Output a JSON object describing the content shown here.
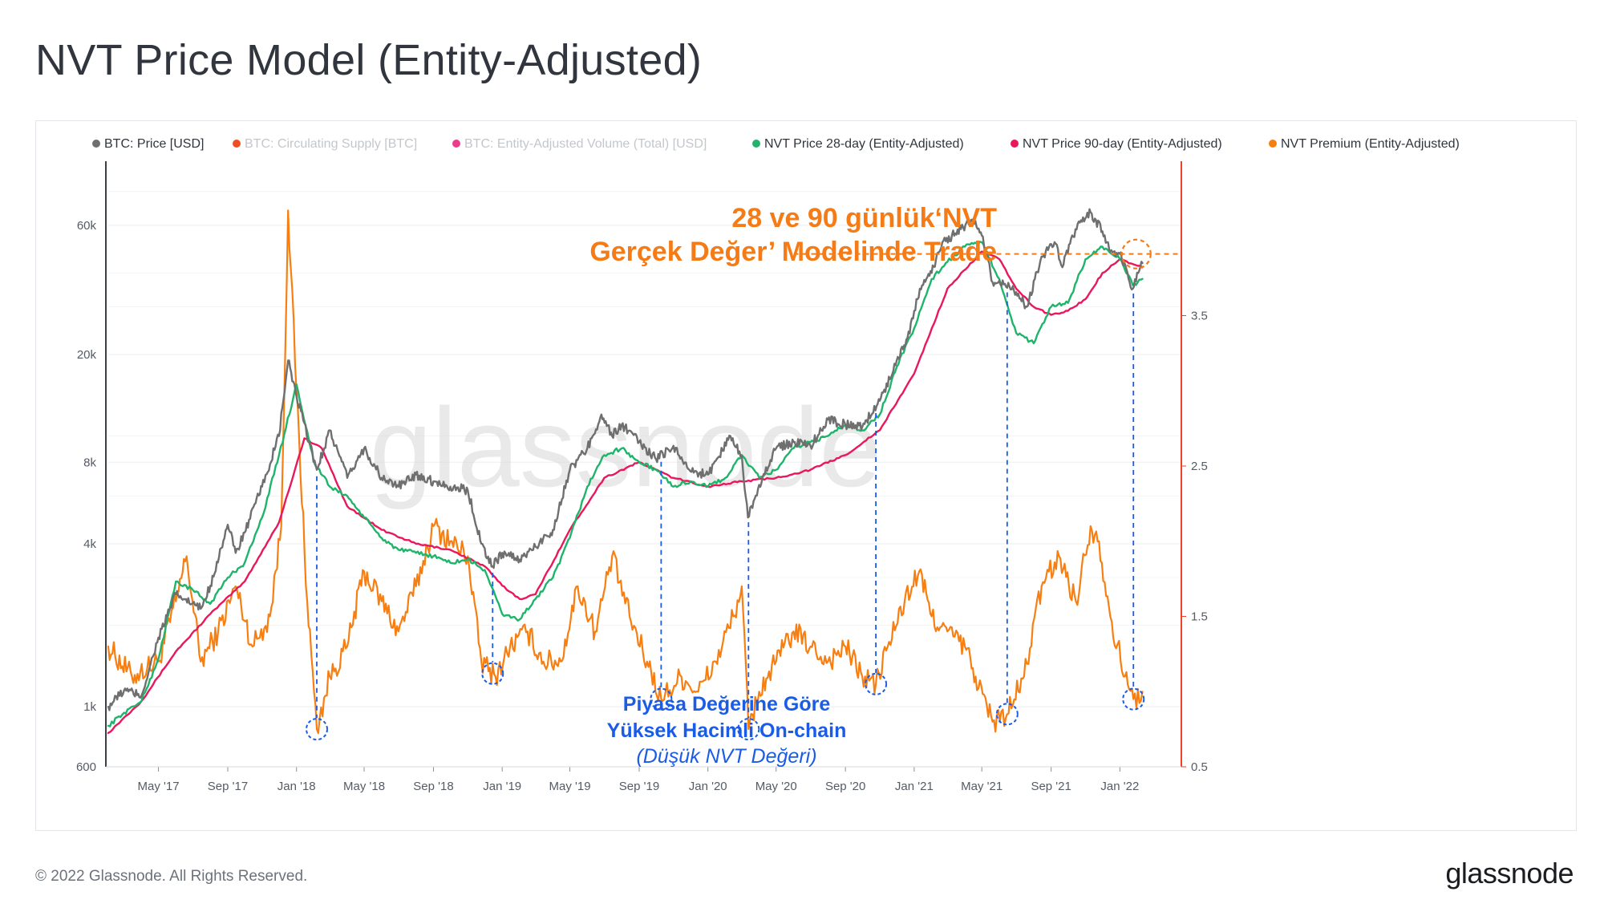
{
  "title": "NVT Price Model (Entity-Adjusted)",
  "footer": {
    "copyright": "© 2022 Glassnode. All Rights Reserved.",
    "brand": "glassnode"
  },
  "watermark": "glassnode",
  "colors": {
    "price": "#6f6f6f",
    "supply": "#f04e23",
    "volume": "#ec3c8c",
    "nvt28": "#1fb46a",
    "nvt90": "#e8185a",
    "premium": "#f77f12",
    "annotation_orange": "#f47b16",
    "annotation_blue": "#1a5ce6",
    "right_axis": "#ef4123"
  },
  "chart_data": {
    "type": "line",
    "legend": [
      {
        "name": "BTC: Price [USD]",
        "color": "#6f6f6f",
        "active": true
      },
      {
        "name": "BTC: Circulating Supply [BTC]",
        "color": "#f04e23",
        "active": false
      },
      {
        "name": "BTC: Entity-Adjusted Volume (Total) [USD]",
        "color": "#ec3c8c",
        "active": false
      },
      {
        "name": "NVT Price 28-day (Entity-Adjusted)",
        "color": "#1fb46a",
        "active": true
      },
      {
        "name": "NVT Price 90-day (Entity-Adjusted)",
        "color": "#e8185a",
        "active": true
      },
      {
        "name": "NVT Premium (Entity-Adjusted)",
        "color": "#f77f12",
        "active": true
      }
    ],
    "legend_position": "top",
    "x_ticks": [
      "May '17",
      "Sep '17",
      "Jan '18",
      "May '18",
      "Sep '18",
      "Jan '19",
      "May '19",
      "Sep '19",
      "Jan '20",
      "May '20",
      "Sep '20",
      "Jan '21",
      "May '21",
      "Sep '21",
      "Jan '22"
    ],
    "x_range": [
      "2017-02-01",
      "2022-02-15"
    ],
    "y_left": {
      "scale": "log",
      "range": [
        600,
        100000
      ],
      "ticks": [
        "600",
        "1k",
        "4k",
        "8k",
        "20k",
        "60k"
      ]
    },
    "y_right": {
      "scale": "linear",
      "range": [
        0.5,
        4.5
      ],
      "ticks": [
        "0.5",
        "1.5",
        "2.5",
        "3.5"
      ]
    },
    "series": [
      {
        "name": "BTC: Price [USD]",
        "axis": "left",
        "x": [
          "2017-02-01",
          "2017-03-01",
          "2017-04-01",
          "2017-05-01",
          "2017-06-01",
          "2017-06-15",
          "2017-07-15",
          "2017-08-01",
          "2017-09-01",
          "2017-09-15",
          "2017-10-01",
          "2017-11-01",
          "2017-12-01",
          "2017-12-17",
          "2018-01-01",
          "2018-02-06",
          "2018-03-01",
          "2018-04-01",
          "2018-05-01",
          "2018-06-01",
          "2018-07-01",
          "2018-08-01",
          "2018-09-01",
          "2018-10-01",
          "2018-11-01",
          "2018-11-25",
          "2018-12-15",
          "2019-01-01",
          "2019-02-01",
          "2019-03-01",
          "2019-04-01",
          "2019-05-01",
          "2019-06-01",
          "2019-06-26",
          "2019-07-15",
          "2019-08-01",
          "2019-09-01",
          "2019-10-01",
          "2019-11-01",
          "2019-12-01",
          "2020-01-01",
          "2020-02-10",
          "2020-03-01",
          "2020-03-12",
          "2020-04-01",
          "2020-05-01",
          "2020-06-01",
          "2020-07-01",
          "2020-08-01",
          "2020-09-01",
          "2020-10-01",
          "2020-11-01",
          "2020-12-01",
          "2020-12-20",
          "2021-01-01",
          "2021-01-15",
          "2021-02-01",
          "2021-02-20",
          "2021-03-15",
          "2021-04-14",
          "2021-05-01",
          "2021-05-20",
          "2021-06-01",
          "2021-07-01",
          "2021-07-20",
          "2021-08-15",
          "2021-09-07",
          "2021-09-21",
          "2021-10-20",
          "2021-11-10",
          "2021-12-01",
          "2021-12-15",
          "2022-01-01",
          "2022-01-24",
          "2022-02-10"
        ],
        "values": [
          1000,
          1150,
          1100,
          1800,
          2600,
          2500,
          2300,
          2800,
          4700,
          3700,
          4400,
          6500,
          10000,
          19000,
          14000,
          7500,
          10500,
          7000,
          9000,
          7000,
          6500,
          7200,
          6800,
          6500,
          6300,
          4000,
          3300,
          3700,
          3500,
          3900,
          4500,
          7500,
          9000,
          12000,
          10000,
          11000,
          9500,
          8200,
          9200,
          7400,
          7200,
          10000,
          8500,
          5000,
          6600,
          9000,
          9500,
          9200,
          11500,
          11000,
          10800,
          13500,
          19000,
          23000,
          29000,
          36000,
          40000,
          52000,
          56000,
          63000,
          55000,
          37000,
          37500,
          34000,
          30000,
          46000,
          52000,
          42000,
          62000,
          67000,
          57000,
          48000,
          47000,
          35000,
          43500
        ]
      },
      {
        "name": "NVT Price 28-day (Entity-Adjusted)",
        "axis": "left",
        "x": [
          "2017-02-01",
          "2017-03-01",
          "2017-04-01",
          "2017-05-01",
          "2017-06-01",
          "2017-07-01",
          "2017-08-01",
          "2017-09-01",
          "2017-10-01",
          "2017-11-01",
          "2017-12-01",
          "2018-01-01",
          "2018-02-01",
          "2018-03-01",
          "2018-04-01",
          "2018-05-01",
          "2018-06-01",
          "2018-07-01",
          "2018-08-01",
          "2018-09-01",
          "2018-10-01",
          "2018-11-01",
          "2018-12-01",
          "2019-01-01",
          "2019-02-01",
          "2019-03-01",
          "2019-04-01",
          "2019-05-01",
          "2019-06-01",
          "2019-07-01",
          "2019-08-01",
          "2019-09-01",
          "2019-10-01",
          "2019-11-01",
          "2019-12-01",
          "2020-01-01",
          "2020-02-01",
          "2020-03-01",
          "2020-04-01",
          "2020-05-01",
          "2020-06-01",
          "2020-07-01",
          "2020-08-01",
          "2020-09-01",
          "2020-10-01",
          "2020-11-01",
          "2020-12-01",
          "2021-01-01",
          "2021-02-01",
          "2021-03-01",
          "2021-04-01",
          "2021-05-01",
          "2021-06-01",
          "2021-07-01",
          "2021-08-01",
          "2021-09-01",
          "2021-10-01",
          "2021-11-01",
          "2021-12-01",
          "2022-01-01",
          "2022-01-24",
          "2022-02-10"
        ],
        "values": [
          850,
          950,
          1050,
          1500,
          2900,
          2700,
          2400,
          3000,
          3400,
          5000,
          8500,
          15500,
          8000,
          6500,
          6000,
          5000,
          4200,
          3800,
          3700,
          3600,
          3400,
          3500,
          3200,
          2200,
          2100,
          2500,
          3000,
          4200,
          6500,
          8500,
          9000,
          8000,
          7500,
          6500,
          6800,
          6500,
          7000,
          8500,
          7000,
          7500,
          9000,
          9500,
          10000,
          11000,
          10500,
          12000,
          18000,
          25000,
          38000,
          44000,
          50000,
          52000,
          38000,
          24000,
          22000,
          30000,
          31000,
          45000,
          50000,
          45000,
          36000,
          38000
        ]
      },
      {
        "name": "NVT Price 90-day (Entity-Adjusted)",
        "axis": "left",
        "x": [
          "2017-02-01",
          "2017-04-01",
          "2017-06-01",
          "2017-08-01",
          "2017-10-01",
          "2017-12-01",
          "2018-01-15",
          "2018-02-15",
          "2018-04-01",
          "2018-06-01",
          "2018-08-01",
          "2018-10-01",
          "2018-12-01",
          "2019-01-01",
          "2019-02-01",
          "2019-03-01",
          "2019-05-01",
          "2019-07-01",
          "2019-09-01",
          "2019-11-01",
          "2020-01-01",
          "2020-03-01",
          "2020-05-01",
          "2020-07-01",
          "2020-09-01",
          "2020-11-01",
          "2021-01-01",
          "2021-03-01",
          "2021-05-01",
          "2021-06-01",
          "2021-07-01",
          "2021-08-01",
          "2021-09-01",
          "2021-10-01",
          "2021-11-01",
          "2021-12-01",
          "2022-01-01",
          "2022-02-10"
        ],
        "values": [
          800,
          1050,
          1600,
          2200,
          2900,
          4800,
          9800,
          9000,
          5500,
          4500,
          4000,
          3800,
          3300,
          2800,
          2500,
          2600,
          4500,
          7000,
          8000,
          7000,
          6500,
          6800,
          7000,
          7500,
          8500,
          10500,
          17000,
          35000,
          48000,
          45000,
          35000,
          30000,
          28000,
          29000,
          32000,
          40000,
          45000,
          42000
        ]
      },
      {
        "name": "NVT Premium (Entity-Adjusted)",
        "axis": "right",
        "x": [
          "2017-02-01",
          "2017-03-15",
          "2017-05-01",
          "2017-06-01",
          "2017-06-20",
          "2017-07-15",
          "2017-08-15",
          "2017-09-15",
          "2017-10-15",
          "2017-11-15",
          "2017-12-05",
          "2017-12-17",
          "2018-01-01",
          "2018-01-20",
          "2018-02-06",
          "2018-03-01",
          "2018-04-01",
          "2018-05-01",
          "2018-06-01",
          "2018-07-01",
          "2018-08-01",
          "2018-09-01",
          "2018-10-01",
          "2018-11-01",
          "2018-11-25",
          "2018-12-20",
          "2019-01-15",
          "2019-02-15",
          "2019-03-15",
          "2019-04-15",
          "2019-05-15",
          "2019-06-15",
          "2019-07-15",
          "2019-08-15",
          "2019-09-15",
          "2019-10-10",
          "2019-11-15",
          "2019-12-15",
          "2020-01-15",
          "2020-02-15",
          "2020-03-01",
          "2020-03-13",
          "2020-04-01",
          "2020-05-01",
          "2020-06-01",
          "2020-07-01",
          "2020-08-01",
          "2020-09-01",
          "2020-10-01",
          "2020-10-25",
          "2020-11-15",
          "2020-12-15",
          "2021-01-10",
          "2021-02-01",
          "2021-03-01",
          "2021-04-01",
          "2021-04-20",
          "2021-05-20",
          "2021-06-15",
          "2021-07-15",
          "2021-08-15",
          "2021-09-15",
          "2021-10-15",
          "2021-11-10",
          "2021-11-25",
          "2021-12-15",
          "2022-01-10",
          "2022-01-25",
          "2022-02-10"
        ],
        "values": [
          1.3,
          1.1,
          1.2,
          1.6,
          1.9,
          1.2,
          1.4,
          1.7,
          1.3,
          1.5,
          2.1,
          4.2,
          3.0,
          1.6,
          0.75,
          1.1,
          1.3,
          1.8,
          1.6,
          1.4,
          1.7,
          2.1,
          2.0,
          1.9,
          1.2,
          1.1,
          1.3,
          1.4,
          1.2,
          1.2,
          1.7,
          1.4,
          1.9,
          1.5,
          1.2,
          0.95,
          1.1,
          1.0,
          1.2,
          1.5,
          1.7,
          0.75,
          1.0,
          1.2,
          1.4,
          1.3,
          1.2,
          1.3,
          1.1,
          1.05,
          1.3,
          1.6,
          1.8,
          1.5,
          1.4,
          1.3,
          1.1,
          0.8,
          0.85,
          1.1,
          1.7,
          1.9,
          1.6,
          2.1,
          2.0,
          1.5,
          1.1,
          0.95,
          1.0
        ]
      }
    ],
    "annotations": [
      {
        "id": "fair-value",
        "lines": [
          "28 ve 90 günlük‘NVT",
          "Gerçek Değer’ Modelinde Trade"
        ],
        "color": "#f47b16"
      },
      {
        "id": "low-nvt",
        "lines": [
          "Piyasa Değerine Göre",
          "Yüksek Hacimli On-chain"
        ],
        "subtitle": "(Düşük NVT Değeri)",
        "color": "#1a5ce6"
      }
    ],
    "markers": [
      "2018-02-06",
      "2018-12-15",
      "2019-10-10",
      "2020-03-13",
      "2020-10-25",
      "2021-06-15",
      "2022-01-25"
    ]
  }
}
